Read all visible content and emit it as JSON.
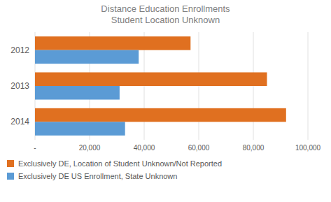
{
  "chart_data": {
    "type": "bar",
    "orientation": "horizontal",
    "title": "Distance Education Enrollments\nStudent Location Unknown",
    "categories": [
      "2012",
      "2013",
      "2014"
    ],
    "series": [
      {
        "name": "Exclusively DE, Location of Student Unknown/Not Reported",
        "color": "#E07020",
        "values": [
          57000,
          85000,
          92000
        ]
      },
      {
        "name": "Exclusively DE US Enrollment, State Unknown",
        "color": "#5B9BD5",
        "values": [
          38000,
          31000,
          33000
        ]
      }
    ],
    "xlim": [
      0,
      100000
    ],
    "xticks": [
      {
        "value": 0,
        "label": "-"
      },
      {
        "value": 20000,
        "label": "20,000"
      },
      {
        "value": 40000,
        "label": "40,000"
      },
      {
        "value": 60000,
        "label": "60,000"
      },
      {
        "value": 80000,
        "label": "80,000"
      },
      {
        "value": 100000,
        "label": "100,000"
      }
    ],
    "grid": true,
    "legend": "bottom"
  }
}
